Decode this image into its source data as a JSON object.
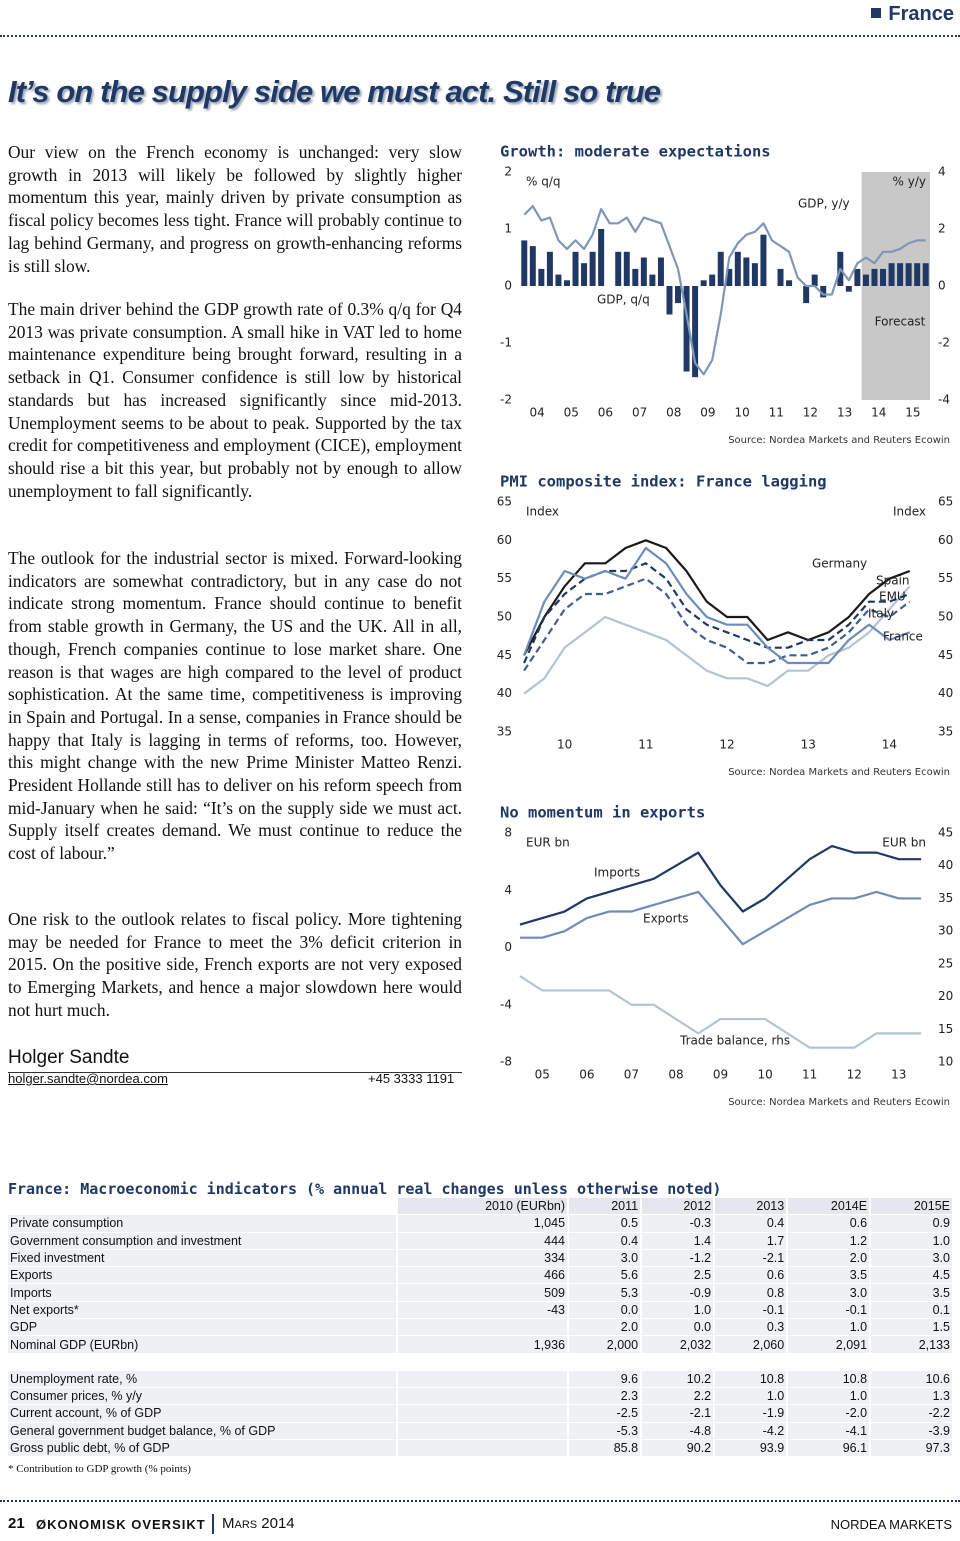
{
  "header": {
    "section": "France"
  },
  "title": "It’s on the supply side we must act. Still so true",
  "paragraphs": [
    "Our view on the French economy is unchanged: very slow growth in 2013 will likely be followed by slightly higher momentum this year, mainly driven by private consumption as fiscal policy becomes less tight. France will probably continue to lag behind Germany, and progress on growth-enhancing reforms is still slow.",
    "The main driver behind the GDP growth rate of 0.3% q/q for Q4 2013 was private consumption. A small hike in VAT led to home maintenance expenditure being brought forward, resulting in a setback in Q1. Consumer confidence is still low by historical standards but has increased significantly since mid-2013. Unemployment seems to be about to peak. Supported by the tax credit for competitiveness and employment (CICE), employment should rise a bit this year, but probably not by enough to allow unemployment to fall significantly.",
    "The outlook for the industrial sector is mixed. Forward-looking indicators are somewhat contradictory, but in any case do not indicate strong momentum. France should continue to benefit from stable growth in Germany, the US and the UK. All in all, though, French companies continue to lose market share. One reason is that wages are high compared to the level of product sophistication. At the same time, competitiveness is improving in Spain and Portugal. In a sense, companies in France should be happy that Italy is lagging in terms of reforms, too. However, this might change with the new Prime Minister Matteo Renzi. President Hollande still has to deliver on his reform speech from mid-January when he said: “It’s on the supply side we must act. Supply itself creates demand. We must continue to reduce the cost of labour.”",
    "One risk to the outlook relates to fiscal policy. More tightening may be needed for France to meet the 3% deficit criterion in 2015. On the positive side, French exports are not very exposed to Emerging Markets, and hence a major slowdown here would not hurt much."
  ],
  "author": {
    "name": "Holger Sandte",
    "email": "holger.sandte@nordea.com",
    "phone": "+45 3333 1191"
  },
  "chart_data": [
    {
      "type": "bar",
      "title": "Growth: moderate expectations",
      "y_label": "% q/q",
      "y2_label": "% y/y",
      "source": "Source: Nordea Markets and Reuters Ecowin",
      "x": [
        2004.125,
        2004.375,
        2004.625,
        2004.875,
        2005.125,
        2005.375,
        2005.625,
        2005.875,
        2006.125,
        2006.375,
        2006.625,
        2006.875,
        2007.125,
        2007.375,
        2007.625,
        2007.875,
        2008.125,
        2008.375,
        2008.625,
        2008.875,
        2009.125,
        2009.375,
        2009.625,
        2009.875,
        2010.125,
        2010.375,
        2010.625,
        2010.875,
        2011.125,
        2011.375,
        2011.625,
        2011.875,
        2012.125,
        2012.375,
        2012.625,
        2012.875,
        2013.125,
        2013.375,
        2013.625,
        2013.875,
        2014.125,
        2014.375,
        2014.625,
        2014.875,
        2015.125,
        2015.375,
        2015.625,
        2015.875
      ],
      "xlim": [
        2004,
        2016
      ],
      "xticks": [
        {
          "value": 2004.5,
          "label": "04"
        },
        {
          "value": 2005.5,
          "label": "05"
        },
        {
          "value": 2006.5,
          "label": "06"
        },
        {
          "value": 2007.5,
          "label": "07"
        },
        {
          "value": 2008.5,
          "label": "08"
        },
        {
          "value": 2009.5,
          "label": "09"
        },
        {
          "value": 2010.5,
          "label": "10"
        },
        {
          "value": 2011.5,
          "label": "11"
        },
        {
          "value": 2012.5,
          "label": "12"
        },
        {
          "value": 2013.5,
          "label": "13"
        },
        {
          "value": 2014.5,
          "label": "14"
        },
        {
          "value": 2015.5,
          "label": "15"
        }
      ],
      "ylim": [
        -2,
        2
      ],
      "yticks": [
        -2,
        -1,
        0,
        1,
        2
      ],
      "y2lim": [
        -4,
        4
      ],
      "y2ticks": [
        -4,
        -2,
        0,
        2,
        4
      ],
      "shade": {
        "from": 2014,
        "to": 2016,
        "label": "Forecast",
        "color": "#c8c8c8"
      },
      "series": [
        {
          "name": "GDP, q/q",
          "color": "#1f3864",
          "values": [
            0.8,
            0.7,
            0.3,
            0.6,
            0.2,
            0.1,
            0.6,
            0.4,
            0.6,
            1.0,
            0.0,
            0.6,
            0.6,
            0.3,
            0.5,
            0.2,
            0.5,
            -0.5,
            -0.3,
            -1.5,
            -1.6,
            0.1,
            0.2,
            0.6,
            0.3,
            0.6,
            0.5,
            0.4,
            0.9,
            0.0,
            0.3,
            0.1,
            0.0,
            -0.3,
            0.2,
            -0.2,
            0.0,
            0.6,
            -0.1,
            0.3,
            0.2,
            0.3,
            0.3,
            0.4,
            0.4,
            0.4,
            0.4,
            0.4
          ]
        },
        {
          "name": "GDP, y/y",
          "type": "line",
          "axis": "y2",
          "color": "#7f96b8",
          "values": [
            2.5,
            2.8,
            2.3,
            2.4,
            1.6,
            1.3,
            1.6,
            1.3,
            1.8,
            2.7,
            2.2,
            2.2,
            2.4,
            1.9,
            2.4,
            2.3,
            2.2,
            1.4,
            0.6,
            -1.0,
            -2.7,
            -3.1,
            -2.6,
            -1.0,
            1.0,
            1.5,
            1.8,
            1.9,
            2.2,
            1.6,
            1.4,
            1.2,
            0.3,
            0.0,
            0.0,
            -0.3,
            -0.3,
            0.6,
            0.2,
            0.8,
            1.0,
            0.8,
            1.2,
            1.2,
            1.3,
            1.5,
            1.6,
            1.6
          ]
        }
      ]
    },
    {
      "type": "line",
      "title": "PMI composite index: France lagging",
      "y_label": "Index",
      "y2_label": "Index",
      "source": "Source: Nordea Markets and Reuters Ecowin",
      "x": [
        2009.5,
        2009.75,
        2010,
        2010.25,
        2010.5,
        2010.75,
        2011,
        2011.25,
        2011.5,
        2011.75,
        2012,
        2012.25,
        2012.5,
        2012.75,
        2013,
        2013.25,
        2013.5,
        2013.75,
        2014,
        2014.25
      ],
      "xlim": [
        2009.45,
        2014.5
      ],
      "xticks": [
        {
          "value": 2010,
          "label": "10"
        },
        {
          "value": 2011,
          "label": "11"
        },
        {
          "value": 2012,
          "label": "12"
        },
        {
          "value": 2013,
          "label": "13"
        },
        {
          "value": 2014,
          "label": "14"
        }
      ],
      "ylim": [
        35,
        65
      ],
      "yticks": [
        35,
        40,
        45,
        50,
        55,
        60,
        65
      ],
      "y2lim": [
        35,
        65
      ],
      "y2ticks": [
        35,
        40,
        45,
        50,
        55,
        60,
        65
      ],
      "series": [
        {
          "name": "Germany",
          "color": "#1a1a1a",
          "values": [
            45,
            50,
            54,
            57,
            57,
            59,
            60,
            59,
            56,
            52,
            50,
            50,
            47,
            48,
            47,
            48,
            50,
            53,
            55,
            56
          ]
        },
        {
          "name": "Spain",
          "color": "#b4c3d4",
          "values": [
            40,
            42,
            46,
            48,
            50,
            49,
            48,
            47,
            45,
            43,
            42,
            42,
            41,
            43,
            43,
            45,
            46,
            48,
            51,
            54
          ]
        },
        {
          "name": "EMU",
          "color": "#1f3864",
          "dash": true,
          "values": [
            44,
            50,
            53,
            55,
            56,
            56,
            57,
            55,
            51,
            49,
            48,
            47,
            46,
            46,
            47,
            47,
            49,
            52,
            52,
            53
          ]
        },
        {
          "name": "Italy",
          "color": "#3d5f91",
          "dash": true,
          "values": [
            43,
            47,
            51,
            53,
            53,
            54,
            55,
            53,
            49,
            47,
            46,
            44,
            44,
            45,
            45,
            46,
            48,
            51,
            50,
            52
          ]
        },
        {
          "name": "France",
          "color": "#6f8bb8",
          "values": [
            45,
            52,
            56,
            55,
            56,
            55,
            59,
            57,
            53,
            50,
            49,
            49,
            46,
            44,
            44,
            44,
            47,
            49,
            47,
            48
          ]
        }
      ]
    },
    {
      "type": "line",
      "title": "No momentum in exports",
      "y_label": "EUR bn",
      "y2_label": "EUR bn",
      "source": "Source: Nordea Markets and Reuters Ecowin",
      "x": [
        2004.5,
        2005,
        2005.5,
        2006,
        2006.5,
        2007,
        2007.5,
        2008,
        2008.5,
        2009,
        2009.5,
        2010,
        2010.5,
        2011,
        2011.5,
        2012,
        2012.5,
        2013,
        2013.5
      ],
      "xlim": [
        2004.5,
        2013.7
      ],
      "xticks": [
        {
          "value": 2005,
          "label": "05"
        },
        {
          "value": 2006,
          "label": "06"
        },
        {
          "value": 2007,
          "label": "07"
        },
        {
          "value": 2008,
          "label": "08"
        },
        {
          "value": 2009,
          "label": "09"
        },
        {
          "value": 2010,
          "label": "10"
        },
        {
          "value": 2011,
          "label": "11"
        },
        {
          "value": 2012,
          "label": "12"
        },
        {
          "value": 2013,
          "label": "13"
        }
      ],
      "ylim": [
        -8,
        8
      ],
      "yticks": [
        -8,
        -4,
        0,
        4,
        8
      ],
      "y2lim": [
        10,
        45
      ],
      "y2ticks": [
        10,
        15,
        20,
        25,
        30,
        35,
        40,
        45
      ],
      "series": [
        {
          "name": "Imports",
          "axis": "y2",
          "color": "#1f3864",
          "values": [
            31,
            32,
            33,
            35,
            36,
            37,
            38,
            40,
            42,
            37,
            33,
            35,
            38,
            41,
            43,
            42,
            42,
            41,
            41
          ]
        },
        {
          "name": "Exports",
          "axis": "y2",
          "color": "#6f8bb8",
          "values": [
            29,
            29,
            30,
            32,
            33,
            33,
            34,
            35,
            36,
            32,
            28,
            30,
            32,
            34,
            35,
            35,
            36,
            35,
            35
          ]
        },
        {
          "name": "Trade balance, rhs",
          "color": "#b4c3d4",
          "values": [
            -2,
            -3,
            -3,
            -3,
            -3,
            -4,
            -4,
            -5,
            -6,
            -5,
            -5,
            -5,
            -6,
            -7,
            -7,
            -7,
            -6,
            -6,
            -6
          ]
        }
      ]
    }
  ],
  "table": {
    "title": "France: Macroeconomic indicators (% annual real changes unless otherwise noted)",
    "header": [
      "2010 (EURbn)",
      "2011",
      "2012",
      "2013",
      "2014E",
      "2015E"
    ],
    "rows": [
      [
        "Private consumption",
        "1,045",
        "0.5",
        "-0.3",
        "0.4",
        "0.6",
        "0.9"
      ],
      [
        "Government consumption and investment",
        "444",
        "0.4",
        "1.4",
        "1.7",
        "1.2",
        "1.0"
      ],
      [
        "Fixed investment",
        "334",
        "3.0",
        "-1.2",
        "-2.1",
        "2.0",
        "3.0"
      ],
      [
        "Exports",
        "466",
        "5.6",
        "2.5",
        "0.6",
        "3.5",
        "4.5"
      ],
      [
        "Imports",
        "509",
        "5.3",
        "-0.9",
        "0.8",
        "3.0",
        "3.5"
      ],
      [
        "Net exports*",
        "-43",
        "0.0",
        "1.0",
        "-0.1",
        "-0.1",
        "0.1"
      ],
      [
        "GDP",
        null,
        "2.0",
        "0.0",
        "0.3",
        "1.0",
        "1.5"
      ],
      [
        "Nominal GDP (EURbn)",
        "1,936",
        "2,000",
        "2,032",
        "2,060",
        "2,091",
        "2,133"
      ]
    ],
    "rows2": [
      [
        "Unemployment rate, %",
        null,
        "9.6",
        "10.2",
        "10.8",
        "10.8",
        "10.6"
      ],
      [
        "Consumer prices, % y/y",
        null,
        "2.3",
        "2.2",
        "1.0",
        "1.0",
        "1.3"
      ],
      [
        "Current account, % of GDP",
        null,
        "-2.5",
        "-2.1",
        "-1.9",
        "-2.0",
        "-2.2"
      ],
      [
        "General government budget balance, % of GDP",
        null,
        "-5.3",
        "-4.8",
        "-4.2",
        "-4.1",
        "-3.9"
      ],
      [
        "Gross public debt, % of GDP",
        null,
        "85.8",
        "90.2",
        "93.9",
        "96.1",
        "97.3"
      ]
    ],
    "footnote": "* Contribution to GDP growth (% points)"
  },
  "footer": {
    "page": "21",
    "publication": "ØKONOMISK OVERSIKT",
    "issue": "Mars 2014",
    "publisher": "NORDEA MARKETS"
  }
}
